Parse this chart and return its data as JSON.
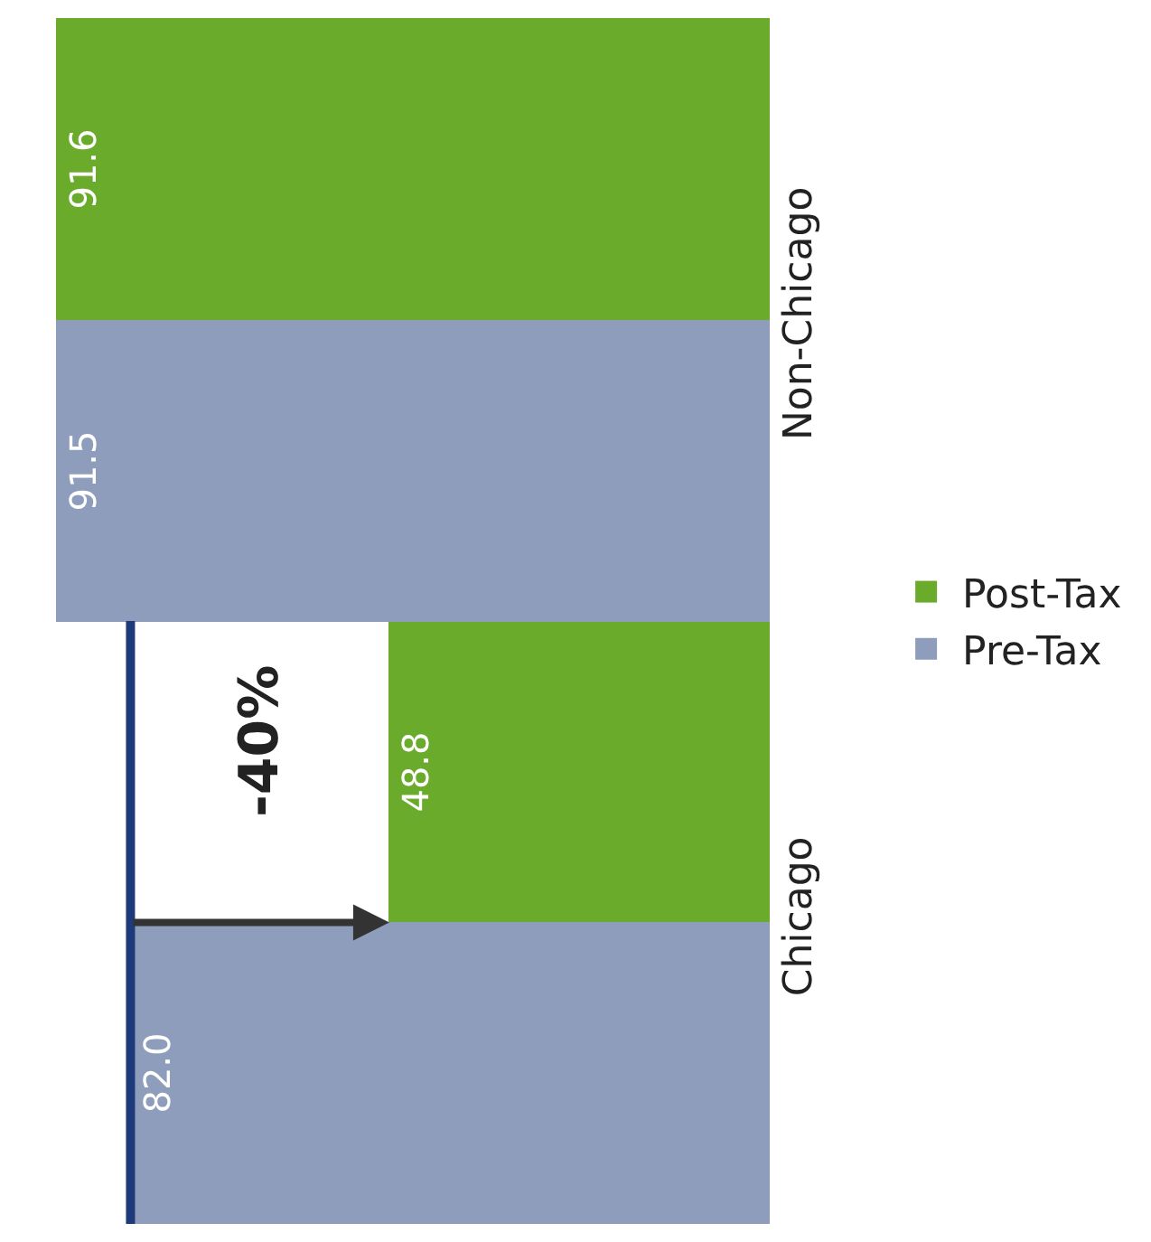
{
  "chart_data": {
    "type": "bar",
    "orientation": "horizontal",
    "categories": [
      "Non-Chicago",
      "Chicago"
    ],
    "series": [
      {
        "name": "Pre-Tax",
        "color": "#8d9dbb",
        "values": [
          91.5,
          82.0
        ],
        "value_labels": [
          "91.5",
          "82.0"
        ]
      },
      {
        "name": "Post-Tax",
        "color": "#6aab2b",
        "values": [
          91.6,
          48.8
        ],
        "value_labels": [
          "91.6",
          "48.8"
        ]
      }
    ],
    "ref_lines": [
      {
        "axis": "x",
        "value": 82.0,
        "color": "#1f3a7a"
      }
    ],
    "tick_labels": "y",
    "legend": "right",
    "annotations": [
      "-40%"
    ]
  }
}
